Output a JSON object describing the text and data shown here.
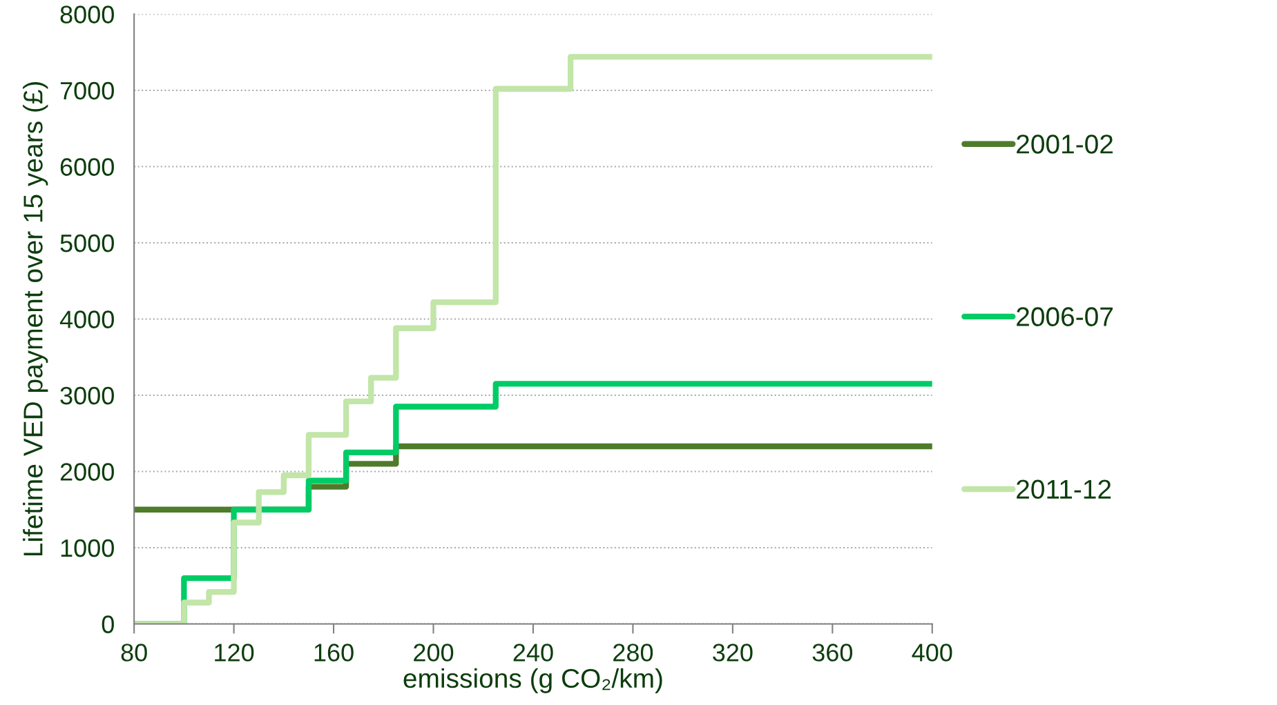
{
  "chart_data": {
    "type": "step",
    "xlabel": "emissions (g CO₂/km)",
    "ylabel": "Lifetime VED payment over 15 years (£)",
    "xlim": [
      80,
      400
    ],
    "xticks": [
      80,
      120,
      160,
      200,
      240,
      280,
      320,
      360,
      400
    ],
    "ylim": [
      0,
      8000
    ],
    "yticks": [
      0,
      1000,
      2000,
      3000,
      4000,
      5000,
      6000,
      7000,
      8000
    ],
    "grid": "y",
    "legend": "right",
    "line_style": "solid",
    "marker": "none",
    "series": [
      {
        "name": "2001-02",
        "color": "#4e7c2a",
        "x": [
          80,
          120,
          150,
          165,
          185,
          400
        ],
        "values": [
          1500,
          1500,
          1800,
          2100,
          2330,
          2330
        ]
      },
      {
        "name": "2006-07",
        "color": "#00cc66",
        "x": [
          80,
          100,
          120,
          150,
          165,
          185,
          225,
          400
        ],
        "values": [
          0,
          600,
          1500,
          1880,
          2250,
          2850,
          3150,
          3150
        ]
      },
      {
        "name": "2011-12",
        "color": "#c2e5a8",
        "x": [
          80,
          100,
          110,
          120,
          130,
          140,
          150,
          165,
          175,
          185,
          200,
          225,
          255,
          400
        ],
        "values": [
          0,
          280,
          420,
          1330,
          1730,
          1950,
          2480,
          2920,
          3230,
          3880,
          4220,
          7020,
          7440,
          7440
        ]
      }
    ]
  }
}
